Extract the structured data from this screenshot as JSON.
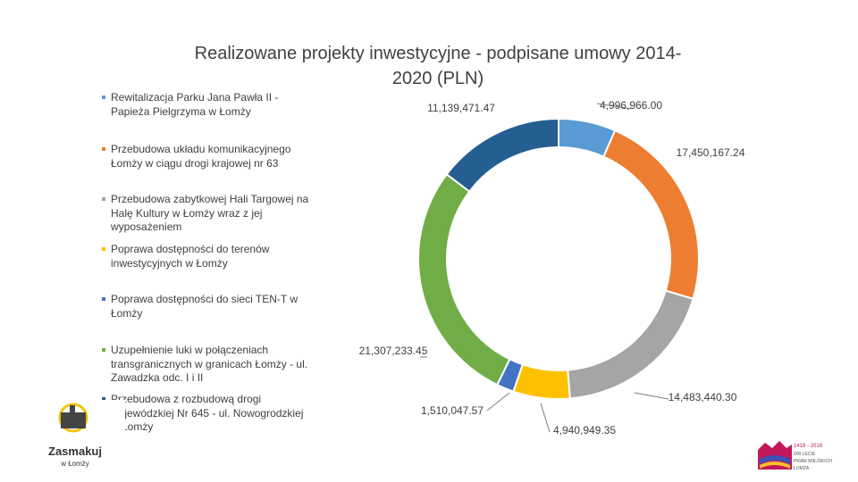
{
  "chart_data": {
    "type": "donut",
    "title": "Realizowane projekty inwestycyjne - podpisane umowy 2014-2020 (PLN)",
    "title_lines": [
      "Realizowane projekty inwestycyjne - podpisane umowy 2014-",
      "2020 (PLN)"
    ],
    "series": [
      {
        "name": "Rewitalizacja Parku Jana Pawła II - Papieża Pielgrzyma w Łomży",
        "value": 4996966.0,
        "label": "4,996,966.00",
        "color": "#5B9BD5"
      },
      {
        "name": "Przebudowa układu komunikacyjnego Łomży w ciągu drogi krajowej nr 63",
        "value": 17450167.24,
        "label": "17,450,167.24",
        "color": "#ED7D31"
      },
      {
        "name": "Przebudowa zabytkowej Hali Targowej na Halę Kultury w Łomży wraz z jej wyposażeniem",
        "value": 14483440.3,
        "label": "14,483,440.30",
        "color": "#A5A5A5"
      },
      {
        "name": "Poprawa dostępności do terenów inwestycyjnych w Łomży",
        "value": 4940949.35,
        "label": "4,940,949.35",
        "color": "#FFC000"
      },
      {
        "name": "Poprawa dostępności do sieci TEN-T w Łomży",
        "value": 1510047.57,
        "label": "1,510,047.57",
        "color": "#4472C4"
      },
      {
        "name": "Uzupełnienie luki w połączeniach transgranicznych w granicach Łomży - ul. Zawadzka odc. I i II",
        "value": 21307233.45,
        "label": "21,307,233.45",
        "color": "#70AD47"
      },
      {
        "name": "Przebudowa z rozbudową drogi wojewódzkiej Nr 645 - ul. Nowogrodzkiej w Łomży",
        "value": 11139471.47,
        "label": "11,139,471.47",
        "color": "#255E91"
      }
    ],
    "legend_lines": [
      [
        "Rewitalizacja Parku Jana Pawła II -",
        "Papieża Pielgrzyma w Łomży"
      ],
      [
        "Przebudowa układu komunikacyjnego",
        "Łomży w ciągu drogi krajowej nr 63"
      ],
      [
        "Przebudowa zabytkowej Hali Targowej na",
        "Halę Kultury w Łomży wraz z jej",
        "wyposażeniem"
      ],
      [
        "Poprawa dostępności do terenów",
        "inwestycyjnych w Łomży"
      ],
      [
        "Poprawa dostępności do sieci TEN-T w",
        "Łomży"
      ],
      [
        "Uzupełnienie luki w połączeniach",
        "transgranicznych w granicach Łomży - ul.",
        "Zawadzka odc. I i II"
      ],
      [
        "Przebudowa z rozbudową drogi",
        "wojewódzkiej Nr 645 - ul. Nowogrodzkiej",
        "w Łomży"
      ]
    ],
    "legend_position": "left"
  },
  "logos": {
    "left": {
      "line1": "Zasmakuj",
      "line2": "w Łomży"
    },
    "right": {
      "line1": "1418 - 2018",
      "line2": "600 LECIE",
      "line3": "PRAW MIEJSKICH",
      "line4": "ŁOMŻA"
    }
  }
}
